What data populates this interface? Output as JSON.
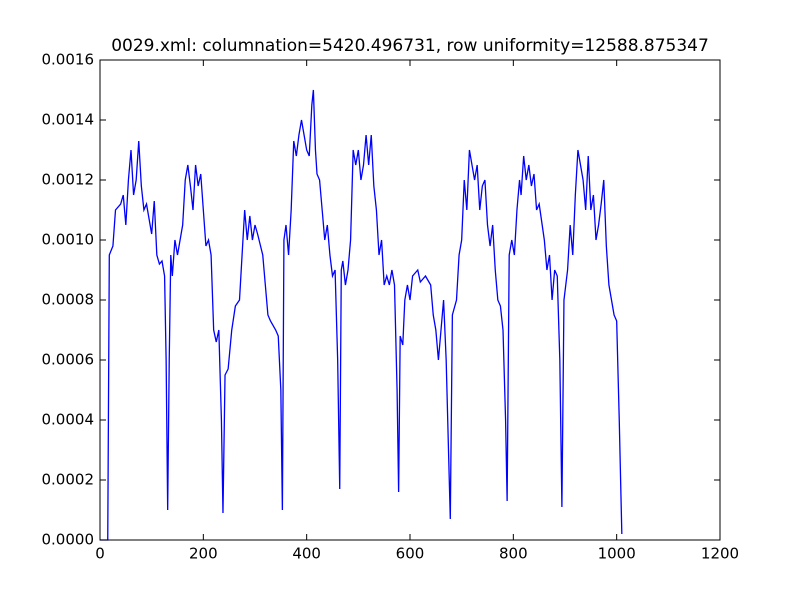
{
  "chart_data": {
    "type": "line",
    "title": "0029.xml: columnation=5420.496731, row uniformity=12588.875347",
    "color": "#0000ff",
    "x": [
      0,
      15,
      18,
      25,
      30,
      40,
      45,
      50,
      55,
      60,
      65,
      70,
      75,
      80,
      85,
      90,
      100,
      105,
      110,
      115,
      120,
      125,
      128,
      131,
      134,
      137,
      140,
      145,
      150,
      160,
      165,
      170,
      175,
      180,
      185,
      190,
      195,
      200,
      205,
      210,
      215,
      220,
      225,
      230,
      235,
      238,
      242,
      248,
      255,
      262,
      270,
      275,
      280,
      285,
      290,
      295,
      300,
      305,
      315,
      320,
      325,
      330,
      340,
      345,
      350,
      353,
      356,
      360,
      365,
      370,
      375,
      380,
      385,
      390,
      395,
      400,
      405,
      410,
      413,
      417,
      420,
      425,
      430,
      435,
      440,
      445,
      450,
      455,
      460,
      464,
      467,
      470,
      475,
      480,
      485,
      490,
      495,
      500,
      505,
      510,
      515,
      520,
      525,
      530,
      535,
      540,
      545,
      550,
      555,
      560,
      565,
      570,
      575,
      578,
      581,
      586,
      590,
      595,
      600,
      605,
      615,
      620,
      630,
      640,
      645,
      650,
      655,
      660,
      665,
      670,
      673,
      676,
      678,
      682,
      690,
      695,
      700,
      705,
      710,
      715,
      720,
      725,
      730,
      735,
      740,
      745,
      750,
      755,
      760,
      765,
      770,
      775,
      780,
      785,
      788,
      792,
      797,
      802,
      807,
      812,
      815,
      820,
      825,
      830,
      835,
      840,
      845,
      850,
      860,
      865,
      870,
      875,
      880,
      885,
      890,
      894,
      898,
      905,
      910,
      915,
      920,
      925,
      930,
      935,
      940,
      945,
      950,
      955,
      960,
      965,
      970,
      975,
      980,
      985,
      990,
      995,
      1000,
      1005,
      1010
    ],
    "values": [
      0,
      0,
      0.00095,
      0.00098,
      0.0011,
      0.00112,
      0.00115,
      0.00105,
      0.0012,
      0.0013,
      0.00115,
      0.0012,
      0.00133,
      0.00118,
      0.0011,
      0.00112,
      0.00102,
      0.00113,
      0.00095,
      0.00092,
      0.00093,
      0.00088,
      0.0006,
      0.0001,
      0.0006,
      0.00095,
      0.00088,
      0.001,
      0.00095,
      0.00105,
      0.0012,
      0.00125,
      0.00118,
      0.0011,
      0.00125,
      0.00118,
      0.00122,
      0.0011,
      0.00098,
      0.001,
      0.00095,
      0.0007,
      0.00066,
      0.0007,
      0.0004,
      9e-05,
      0.00055,
      0.00057,
      0.0007,
      0.00078,
      0.0008,
      0.00095,
      0.0011,
      0.001,
      0.00108,
      0.001,
      0.00105,
      0.00102,
      0.00095,
      0.00085,
      0.00075,
      0.00073,
      0.0007,
      0.00068,
      0.0005,
      0.0001,
      0.001,
      0.00105,
      0.00095,
      0.0011,
      0.00133,
      0.00128,
      0.00135,
      0.0014,
      0.00135,
      0.0013,
      0.00128,
      0.00145,
      0.0015,
      0.0013,
      0.00122,
      0.0012,
      0.0011,
      0.001,
      0.00105,
      0.00095,
      0.00088,
      0.0009,
      0.0006,
      0.00017,
      0.0009,
      0.00093,
      0.00085,
      0.0009,
      0.001,
      0.0013,
      0.00125,
      0.0013,
      0.0012,
      0.00125,
      0.00135,
      0.00125,
      0.00135,
      0.00118,
      0.0011,
      0.00095,
      0.001,
      0.00085,
      0.00088,
      0.00085,
      0.0009,
      0.00085,
      0.0005,
      0.00016,
      0.00068,
      0.00065,
      0.0008,
      0.00085,
      0.0008,
      0.00088,
      0.0009,
      0.00086,
      0.00088,
      0.00085,
      0.00075,
      0.0007,
      0.0006,
      0.0007,
      0.0008,
      0.0006,
      0.0004,
      0.0002,
      7e-05,
      0.00075,
      0.0008,
      0.00095,
      0.001,
      0.0012,
      0.0011,
      0.0013,
      0.00125,
      0.0012,
      0.00125,
      0.0011,
      0.00118,
      0.0012,
      0.00105,
      0.00098,
      0.00105,
      0.0009,
      0.0008,
      0.00078,
      0.0007,
      0.0004,
      0.00013,
      0.00095,
      0.001,
      0.00095,
      0.0011,
      0.0012,
      0.00115,
      0.00128,
      0.0012,
      0.00125,
      0.00118,
      0.00122,
      0.0011,
      0.00112,
      0.001,
      0.0009,
      0.00095,
      0.0008,
      0.0009,
      0.00088,
      0.0006,
      0.00011,
      0.0008,
      0.0009,
      0.00105,
      0.00095,
      0.00115,
      0.0013,
      0.00125,
      0.0012,
      0.0011,
      0.00128,
      0.0011,
      0.00115,
      0.001,
      0.00105,
      0.00112,
      0.0012,
      0.00098,
      0.00085,
      0.0008,
      0.00075,
      0.00073,
      0.0004,
      2e-05
    ],
    "xlim": [
      0,
      1200
    ],
    "xticks": [
      0,
      200,
      400,
      600,
      800,
      1000,
      1200
    ],
    "ylim": [
      0,
      0.0016
    ],
    "yticks": [
      {
        "value": 0,
        "label": "0.0000"
      },
      {
        "value": 0.0002,
        "label": "0.0002"
      },
      {
        "value": 0.0004,
        "label": "0.0004"
      },
      {
        "value": 0.0006,
        "label": "0.0006"
      },
      {
        "value": 0.0008,
        "label": "0.0008"
      },
      {
        "value": 0.001,
        "label": "0.0010"
      },
      {
        "value": 0.0012,
        "label": "0.0012"
      },
      {
        "value": 0.0014,
        "label": "0.0014"
      },
      {
        "value": 0.0016,
        "label": "0.0016"
      }
    ]
  }
}
